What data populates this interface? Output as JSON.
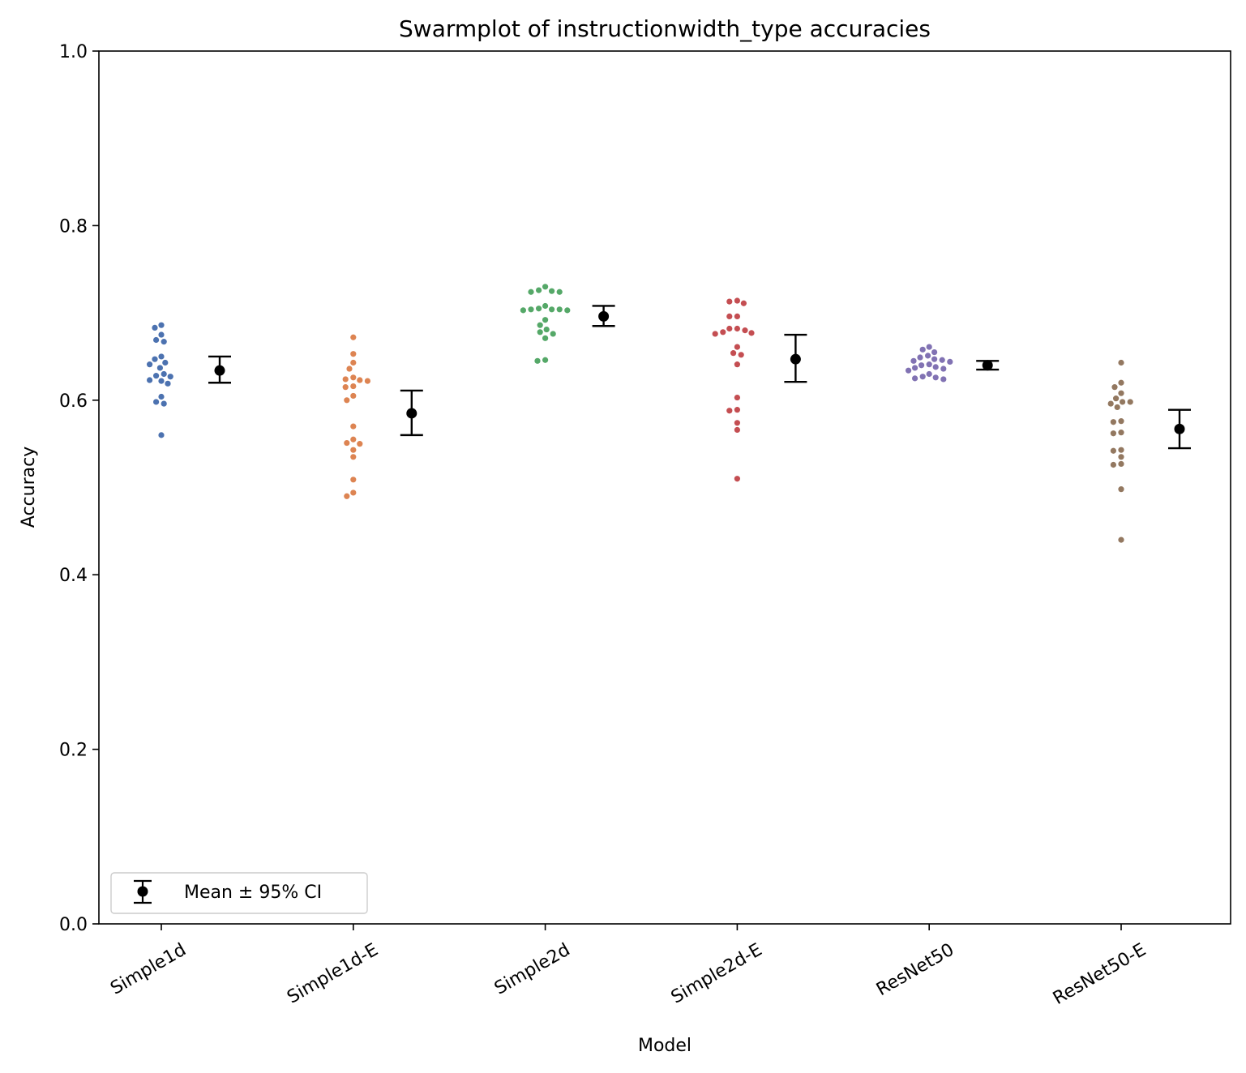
{
  "chart_data": {
    "type": "scatter",
    "title": "Swarmplot of instructionwidth_type accuracies",
    "xlabel": "Model",
    "ylabel": "Accuracy",
    "ylim": [
      0,
      1.0
    ],
    "yticks": [
      "0.0",
      "0.2",
      "0.4",
      "0.6",
      "0.8",
      "1.0"
    ],
    "categories": [
      "Simple1d",
      "Simple1d-E",
      "Simple2d",
      "Simple2d-E",
      "ResNet50",
      "ResNet50-E"
    ],
    "legend": {
      "label": "Mean ± 95% CI",
      "position": "lower-left"
    },
    "series": [
      {
        "color": "#4c72b0",
        "values": [
          0.686,
          0.683,
          0.675,
          0.669,
          0.667,
          0.65,
          0.647,
          0.643,
          0.641,
          0.637,
          0.63,
          0.628,
          0.627,
          0.623,
          0.622,
          0.619,
          0.604,
          0.598,
          0.596,
          0.56
        ],
        "mean": 0.634,
        "ci_low": 0.62,
        "ci_high": 0.65
      },
      {
        "color": "#dd8452",
        "values": [
          0.672,
          0.653,
          0.643,
          0.636,
          0.626,
          0.624,
          0.623,
          0.622,
          0.616,
          0.615,
          0.605,
          0.6,
          0.57,
          0.555,
          0.551,
          0.55,
          0.543,
          0.535,
          0.509,
          0.494,
          0.49
        ],
        "mean": 0.585,
        "ci_low": 0.56,
        "ci_high": 0.611
      },
      {
        "color": "#55a868",
        "values": [
          0.73,
          0.726,
          0.725,
          0.724,
          0.724,
          0.708,
          0.705,
          0.704,
          0.704,
          0.704,
          0.703,
          0.703,
          0.692,
          0.686,
          0.681,
          0.678,
          0.676,
          0.671,
          0.646,
          0.645
        ],
        "mean": 0.696,
        "ci_low": 0.685,
        "ci_high": 0.708
      },
      {
        "color": "#c44e52",
        "values": [
          0.714,
          0.713,
          0.711,
          0.696,
          0.696,
          0.682,
          0.682,
          0.68,
          0.678,
          0.677,
          0.676,
          0.661,
          0.654,
          0.652,
          0.641,
          0.603,
          0.589,
          0.588,
          0.574,
          0.566,
          0.51
        ],
        "mean": 0.647,
        "ci_low": 0.621,
        "ci_high": 0.675
      },
      {
        "color": "#8172b3",
        "values": [
          0.661,
          0.658,
          0.655,
          0.651,
          0.649,
          0.647,
          0.646,
          0.645,
          0.644,
          0.641,
          0.64,
          0.638,
          0.637,
          0.636,
          0.634,
          0.63,
          0.627,
          0.626,
          0.625,
          0.624
        ],
        "mean": 0.64,
        "ci_low": 0.635,
        "ci_high": 0.645
      },
      {
        "color": "#937860",
        "values": [
          0.643,
          0.62,
          0.615,
          0.608,
          0.602,
          0.598,
          0.598,
          0.596,
          0.592,
          0.576,
          0.575,
          0.563,
          0.562,
          0.543,
          0.542,
          0.535,
          0.527,
          0.526,
          0.498,
          0.44
        ],
        "mean": 0.567,
        "ci_low": 0.545,
        "ci_high": 0.589
      }
    ]
  }
}
